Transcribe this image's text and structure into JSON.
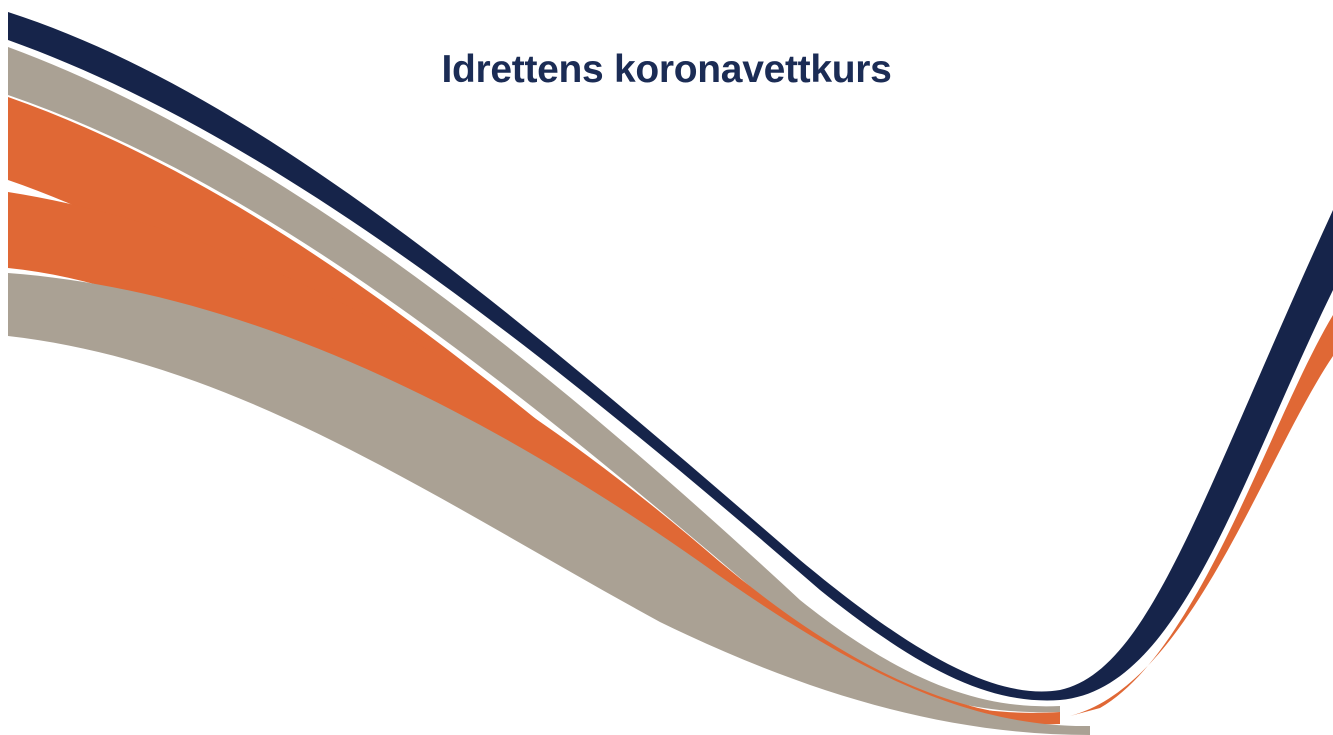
{
  "slide": {
    "title": "Idrettens koronavettkurs"
  }
}
